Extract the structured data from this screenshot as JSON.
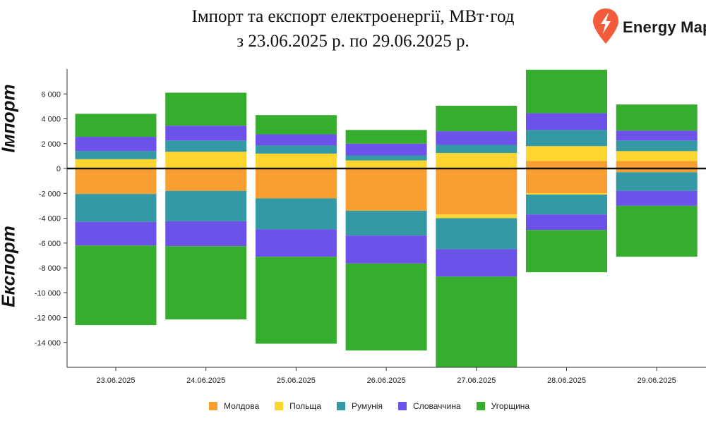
{
  "title": {
    "line1": "Імпорт та експорт електроенергії, МВт·год",
    "line2": "з 23.06.2025 р. по 29.06.2025 р."
  },
  "brand": {
    "name": "Energy Map",
    "icon": "lightning-marker-icon",
    "color": "#f25c3b"
  },
  "side_labels": {
    "import": "Імпорт",
    "export": "Експорт"
  },
  "chart_data": {
    "type": "bar",
    "stacked": true,
    "title": "Імпорт та експорт електроенергії, МВт·год",
    "subtitle": "з 23.06.2025 р. по 29.06.2025 р.",
    "categories": [
      "23.06.2025",
      "24.06.2025",
      "25.06.2025",
      "26.06.2025",
      "27.06.2025",
      "28.06.2025",
      "29.06.2025"
    ],
    "ylim": [
      -16000,
      8000
    ],
    "yticks": [
      6000,
      4000,
      2000,
      0,
      -2000,
      -4000,
      -6000,
      -8000,
      -10000,
      -12000,
      -14000
    ],
    "ytick_labels": [
      "6 000",
      "4 000",
      "2 000",
      "0",
      "-2 000",
      "-4 000",
      "-6 000",
      "-8 000",
      "-10 000",
      "-12 000",
      "-14 000"
    ],
    "grid": false,
    "legend_position": "bottom",
    "series": [
      {
        "name": "Молдова",
        "color": "#f99f32",
        "import": [
          0,
          0,
          0,
          0,
          0,
          600,
          600
        ],
        "export": [
          -2050,
          -1800,
          -2400,
          -3400,
          -3700,
          -2000,
          -300
        ]
      },
      {
        "name": "Польща",
        "color": "#fdd531",
        "import": [
          750,
          1350,
          1200,
          650,
          1250,
          1200,
          800
        ],
        "export": [
          0,
          0,
          0,
          0,
          -300,
          -100,
          0
        ]
      },
      {
        "name": "Румунія",
        "color": "#3498a5",
        "import": [
          650,
          900,
          650,
          400,
          650,
          1300,
          850
        ],
        "export": [
          -2250,
          -2450,
          -2500,
          -2000,
          -2500,
          -1600,
          -1500
        ]
      },
      {
        "name": "Словаччина",
        "color": "#6c52e8",
        "import": [
          1150,
          1200,
          900,
          950,
          1100,
          1350,
          800
        ],
        "export": [
          -1900,
          -2000,
          -2200,
          -2250,
          -2200,
          -1250,
          -1200
        ]
      },
      {
        "name": "Угорщина",
        "color": "#37ad2f",
        "import": [
          1850,
          2650,
          1550,
          1100,
          2050,
          3500,
          2100
        ],
        "export": [
          -6400,
          -5900,
          -7000,
          -7000,
          -7300,
          -3400,
          -4100
        ]
      }
    ]
  }
}
